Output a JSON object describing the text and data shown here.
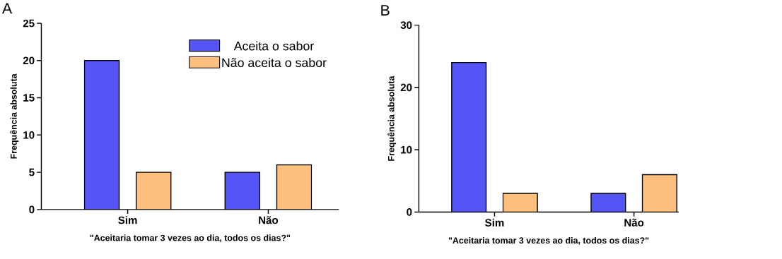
{
  "chart_data": [
    {
      "type": "bar",
      "title": "A",
      "categories": [
        "Sim",
        "Não"
      ],
      "xlabel": "\"Aceitaria tomar 3 vezes ao dia, todos os dias?\"",
      "ylabel": "Frequência absoluta",
      "ylim": [
        0,
        25
      ],
      "yticks": [
        0,
        5,
        10,
        15,
        20,
        25
      ],
      "legend": "top right",
      "grid": false,
      "series": [
        {
          "name": "Aceita o sabor",
          "color": "#5555f5",
          "values": [
            20,
            5
          ]
        },
        {
          "name": "Não aceita o sabor",
          "color": "#ffc07f",
          "values": [
            5,
            6
          ]
        }
      ]
    },
    {
      "type": "bar",
      "title": "B",
      "categories": [
        "Sim",
        "Não"
      ],
      "xlabel": "\"Aceitaria tomar 3 vezes ao dia, todos os dias?\"",
      "ylabel": "Frequência absoluta",
      "ylim": [
        0,
        30
      ],
      "yticks": [
        0,
        10,
        20,
        30
      ],
      "legend": false,
      "grid": false,
      "series": [
        {
          "color": "#5555f5",
          "values": [
            24,
            3
          ]
        },
        {
          "color": "#ffc07f",
          "values": [
            3,
            6
          ]
        }
      ]
    }
  ]
}
